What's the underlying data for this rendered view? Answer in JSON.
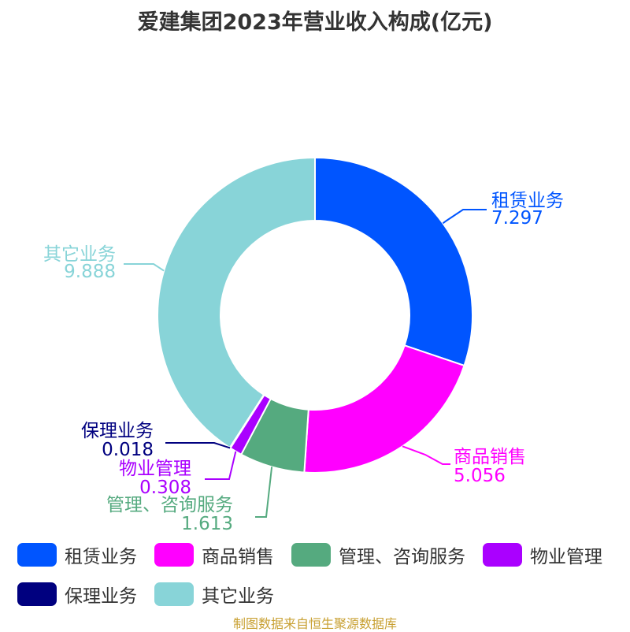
{
  "header": {
    "title": "爱建集团2023年营业收入构成(亿元)"
  },
  "chart_data": {
    "type": "pie",
    "donut": true,
    "title": "爱建集团2023年营业收入构成(亿元)",
    "categories": [
      "租赁业务",
      "商品销售",
      "管理、咨询服务",
      "物业管理",
      "保理业务",
      "其它业务"
    ],
    "values": [
      7.297,
      5.056,
      1.613,
      0.308,
      0.018,
      9.888
    ],
    "value_labels": [
      "7.297",
      "5.056",
      "1.613",
      "0.308",
      "0.018",
      "9.888"
    ],
    "colors": [
      "#0055ff",
      "#ff00ff",
      "#55aa7f",
      "#aa00ff",
      "#00007f",
      "#88d4d8"
    ],
    "legend_position": "bottom"
  },
  "footer": {
    "source": "制图数据来自恒生聚源数据库"
  }
}
